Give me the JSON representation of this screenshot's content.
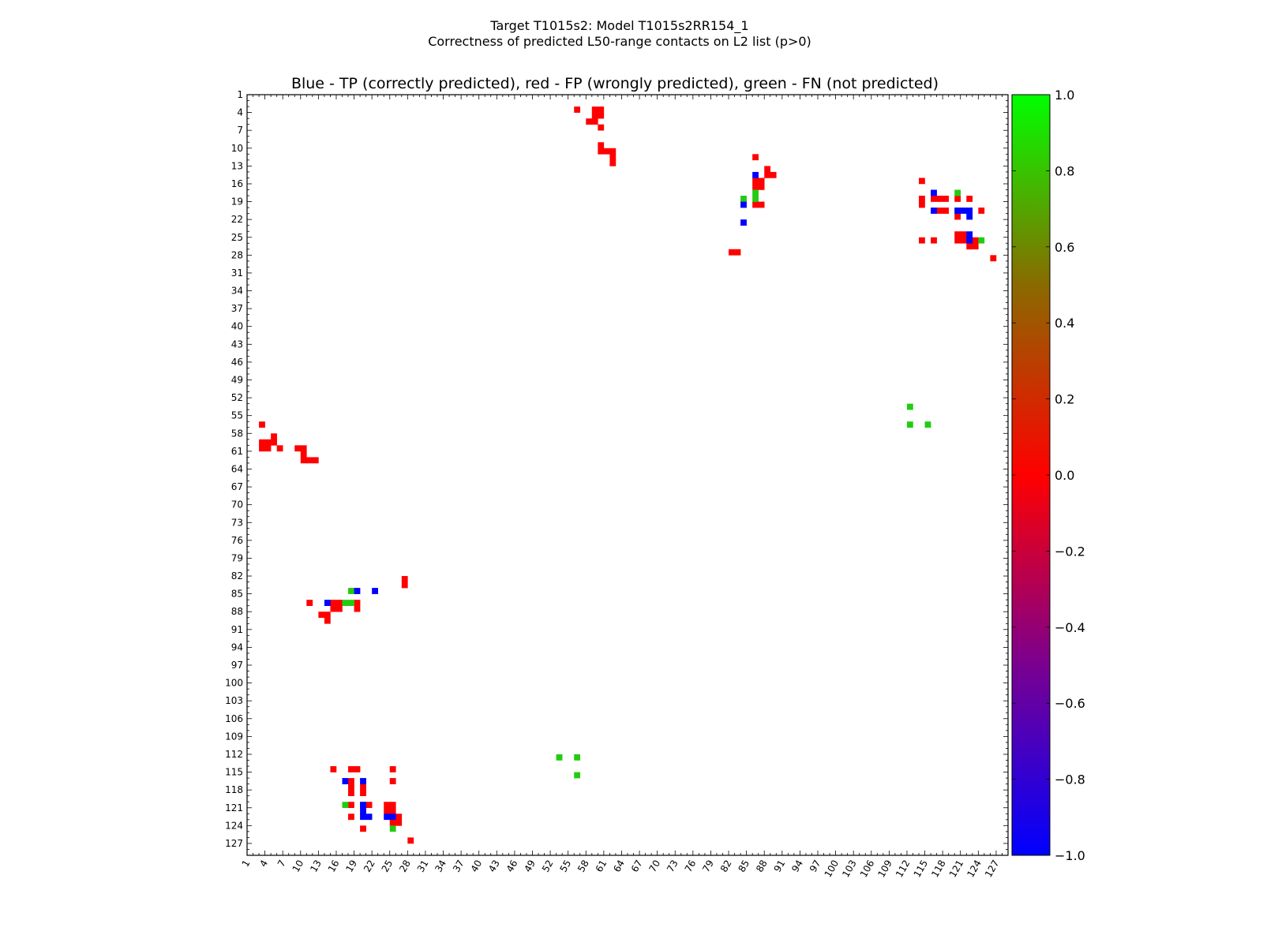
{
  "chart_data": {
    "type": "heatmap",
    "title": "Target T1015s2: Model T1015s2RR154_1",
    "subtitle": "Correctness of predicted L50-range contacts on L2 list (p>0)",
    "plot_title": "Blue - TP (correctly predicted), red - FP (wrongly predicted), green - FN (not predicted)",
    "xlabel": "",
    "ylabel": "",
    "xlim": [
      1,
      129
    ],
    "ylim": [
      1,
      129
    ],
    "y_inverted": true,
    "ticks": [
      1,
      4,
      7,
      10,
      13,
      16,
      19,
      22,
      25,
      28,
      31,
      34,
      37,
      40,
      43,
      46,
      49,
      52,
      55,
      58,
      61,
      64,
      67,
      70,
      73,
      76,
      79,
      82,
      85,
      88,
      91,
      94,
      97,
      100,
      103,
      106,
      109,
      112,
      115,
      118,
      121,
      124,
      127
    ],
    "colors": {
      "tp": "#0000ff",
      "fp": "#ff0000",
      "fn": "#22cc11"
    },
    "colorbar": {
      "min": -1.0,
      "max": 1.0,
      "gradient": [
        "#0000ff",
        "#7a0090",
        "#ff0000",
        "#8a6a00",
        "#00ff00"
      ],
      "ticks": [
        "1.0",
        "0.8",
        "0.6",
        "0.4",
        "0.2",
        "0.0",
        "−0.2",
        "−0.4",
        "−0.6",
        "−0.8",
        "−1.0"
      ]
    },
    "cells": {
      "tp": [
        [
          86,
          14
        ],
        [
          84,
          19
        ],
        [
          84,
          22
        ],
        [
          116,
          17
        ],
        [
          116,
          20
        ],
        [
          120,
          20
        ],
        [
          121,
          20
        ],
        [
          122,
          20
        ],
        [
          122,
          21
        ],
        [
          122,
          24
        ],
        [
          122,
          25
        ],
        [
          14,
          86
        ],
        [
          19,
          84
        ],
        [
          22,
          84
        ],
        [
          17,
          116
        ],
        [
          20,
          116
        ],
        [
          20,
          120
        ],
        [
          20,
          121
        ],
        [
          20,
          122
        ],
        [
          21,
          122
        ],
        [
          24,
          122
        ],
        [
          25,
          122
        ]
      ],
      "fp": [
        [
          56,
          3
        ],
        [
          59,
          3
        ],
        [
          60,
          3
        ],
        [
          59,
          4
        ],
        [
          60,
          4
        ],
        [
          58,
          5
        ],
        [
          59,
          5
        ],
        [
          60,
          6
        ],
        [
          60,
          9
        ],
        [
          60,
          10
        ],
        [
          61,
          10
        ],
        [
          62,
          10
        ],
        [
          62,
          11
        ],
        [
          62,
          12
        ],
        [
          86,
          11
        ],
        [
          88,
          13
        ],
        [
          88,
          14
        ],
        [
          89,
          14
        ],
        [
          86,
          15
        ],
        [
          87,
          15
        ],
        [
          86,
          16
        ],
        [
          87,
          16
        ],
        [
          86,
          19
        ],
        [
          87,
          19
        ],
        [
          82,
          27
        ],
        [
          83,
          27
        ],
        [
          114,
          15
        ],
        [
          114,
          18
        ],
        [
          114,
          19
        ],
        [
          116,
          18
        ],
        [
          117,
          18
        ],
        [
          118,
          18
        ],
        [
          120,
          18
        ],
        [
          122,
          18
        ],
        [
          117,
          20
        ],
        [
          118,
          20
        ],
        [
          120,
          21
        ],
        [
          124,
          20
        ],
        [
          114,
          25
        ],
        [
          116,
          25
        ],
        [
          120,
          25
        ],
        [
          121,
          25
        ],
        [
          120,
          24
        ],
        [
          121,
          24
        ],
        [
          123,
          25
        ],
        [
          122,
          26
        ],
        [
          123,
          26
        ],
        [
          126,
          28
        ],
        [
          3,
          56
        ],
        [
          3,
          59
        ],
        [
          3,
          60
        ],
        [
          4,
          59
        ],
        [
          4,
          60
        ],
        [
          5,
          58
        ],
        [
          5,
          59
        ],
        [
          6,
          60
        ],
        [
          9,
          60
        ],
        [
          10,
          60
        ],
        [
          10,
          61
        ],
        [
          10,
          62
        ],
        [
          11,
          62
        ],
        [
          12,
          62
        ],
        [
          11,
          86
        ],
        [
          13,
          88
        ],
        [
          14,
          88
        ],
        [
          14,
          89
        ],
        [
          15,
          86
        ],
        [
          15,
          87
        ],
        [
          16,
          86
        ],
        [
          16,
          87
        ],
        [
          19,
          86
        ],
        [
          19,
          87
        ],
        [
          27,
          82
        ],
        [
          27,
          83
        ],
        [
          15,
          114
        ],
        [
          18,
          114
        ],
        [
          19,
          114
        ],
        [
          18,
          116
        ],
        [
          18,
          117
        ],
        [
          18,
          118
        ],
        [
          18,
          120
        ],
        [
          18,
          122
        ],
        [
          20,
          117
        ],
        [
          20,
          118
        ],
        [
          21,
          120
        ],
        [
          20,
          124
        ],
        [
          25,
          114
        ],
        [
          25,
          116
        ],
        [
          25,
          120
        ],
        [
          25,
          121
        ],
        [
          24,
          120
        ],
        [
          24,
          121
        ],
        [
          25,
          123
        ],
        [
          26,
          122
        ],
        [
          26,
          123
        ],
        [
          28,
          126
        ]
      ],
      "fn": [
        [
          84,
          18
        ],
        [
          86,
          17
        ],
        [
          86,
          18
        ],
        [
          120,
          17
        ],
        [
          120,
          20
        ],
        [
          124,
          25
        ],
        [
          112,
          53
        ],
        [
          112,
          56
        ],
        [
          115,
          56
        ],
        [
          18,
          84
        ],
        [
          17,
          86
        ],
        [
          18,
          86
        ],
        [
          17,
          120
        ],
        [
          20,
          120
        ],
        [
          25,
          124
        ],
        [
          53,
          112
        ],
        [
          56,
          112
        ],
        [
          56,
          115
        ]
      ]
    }
  }
}
